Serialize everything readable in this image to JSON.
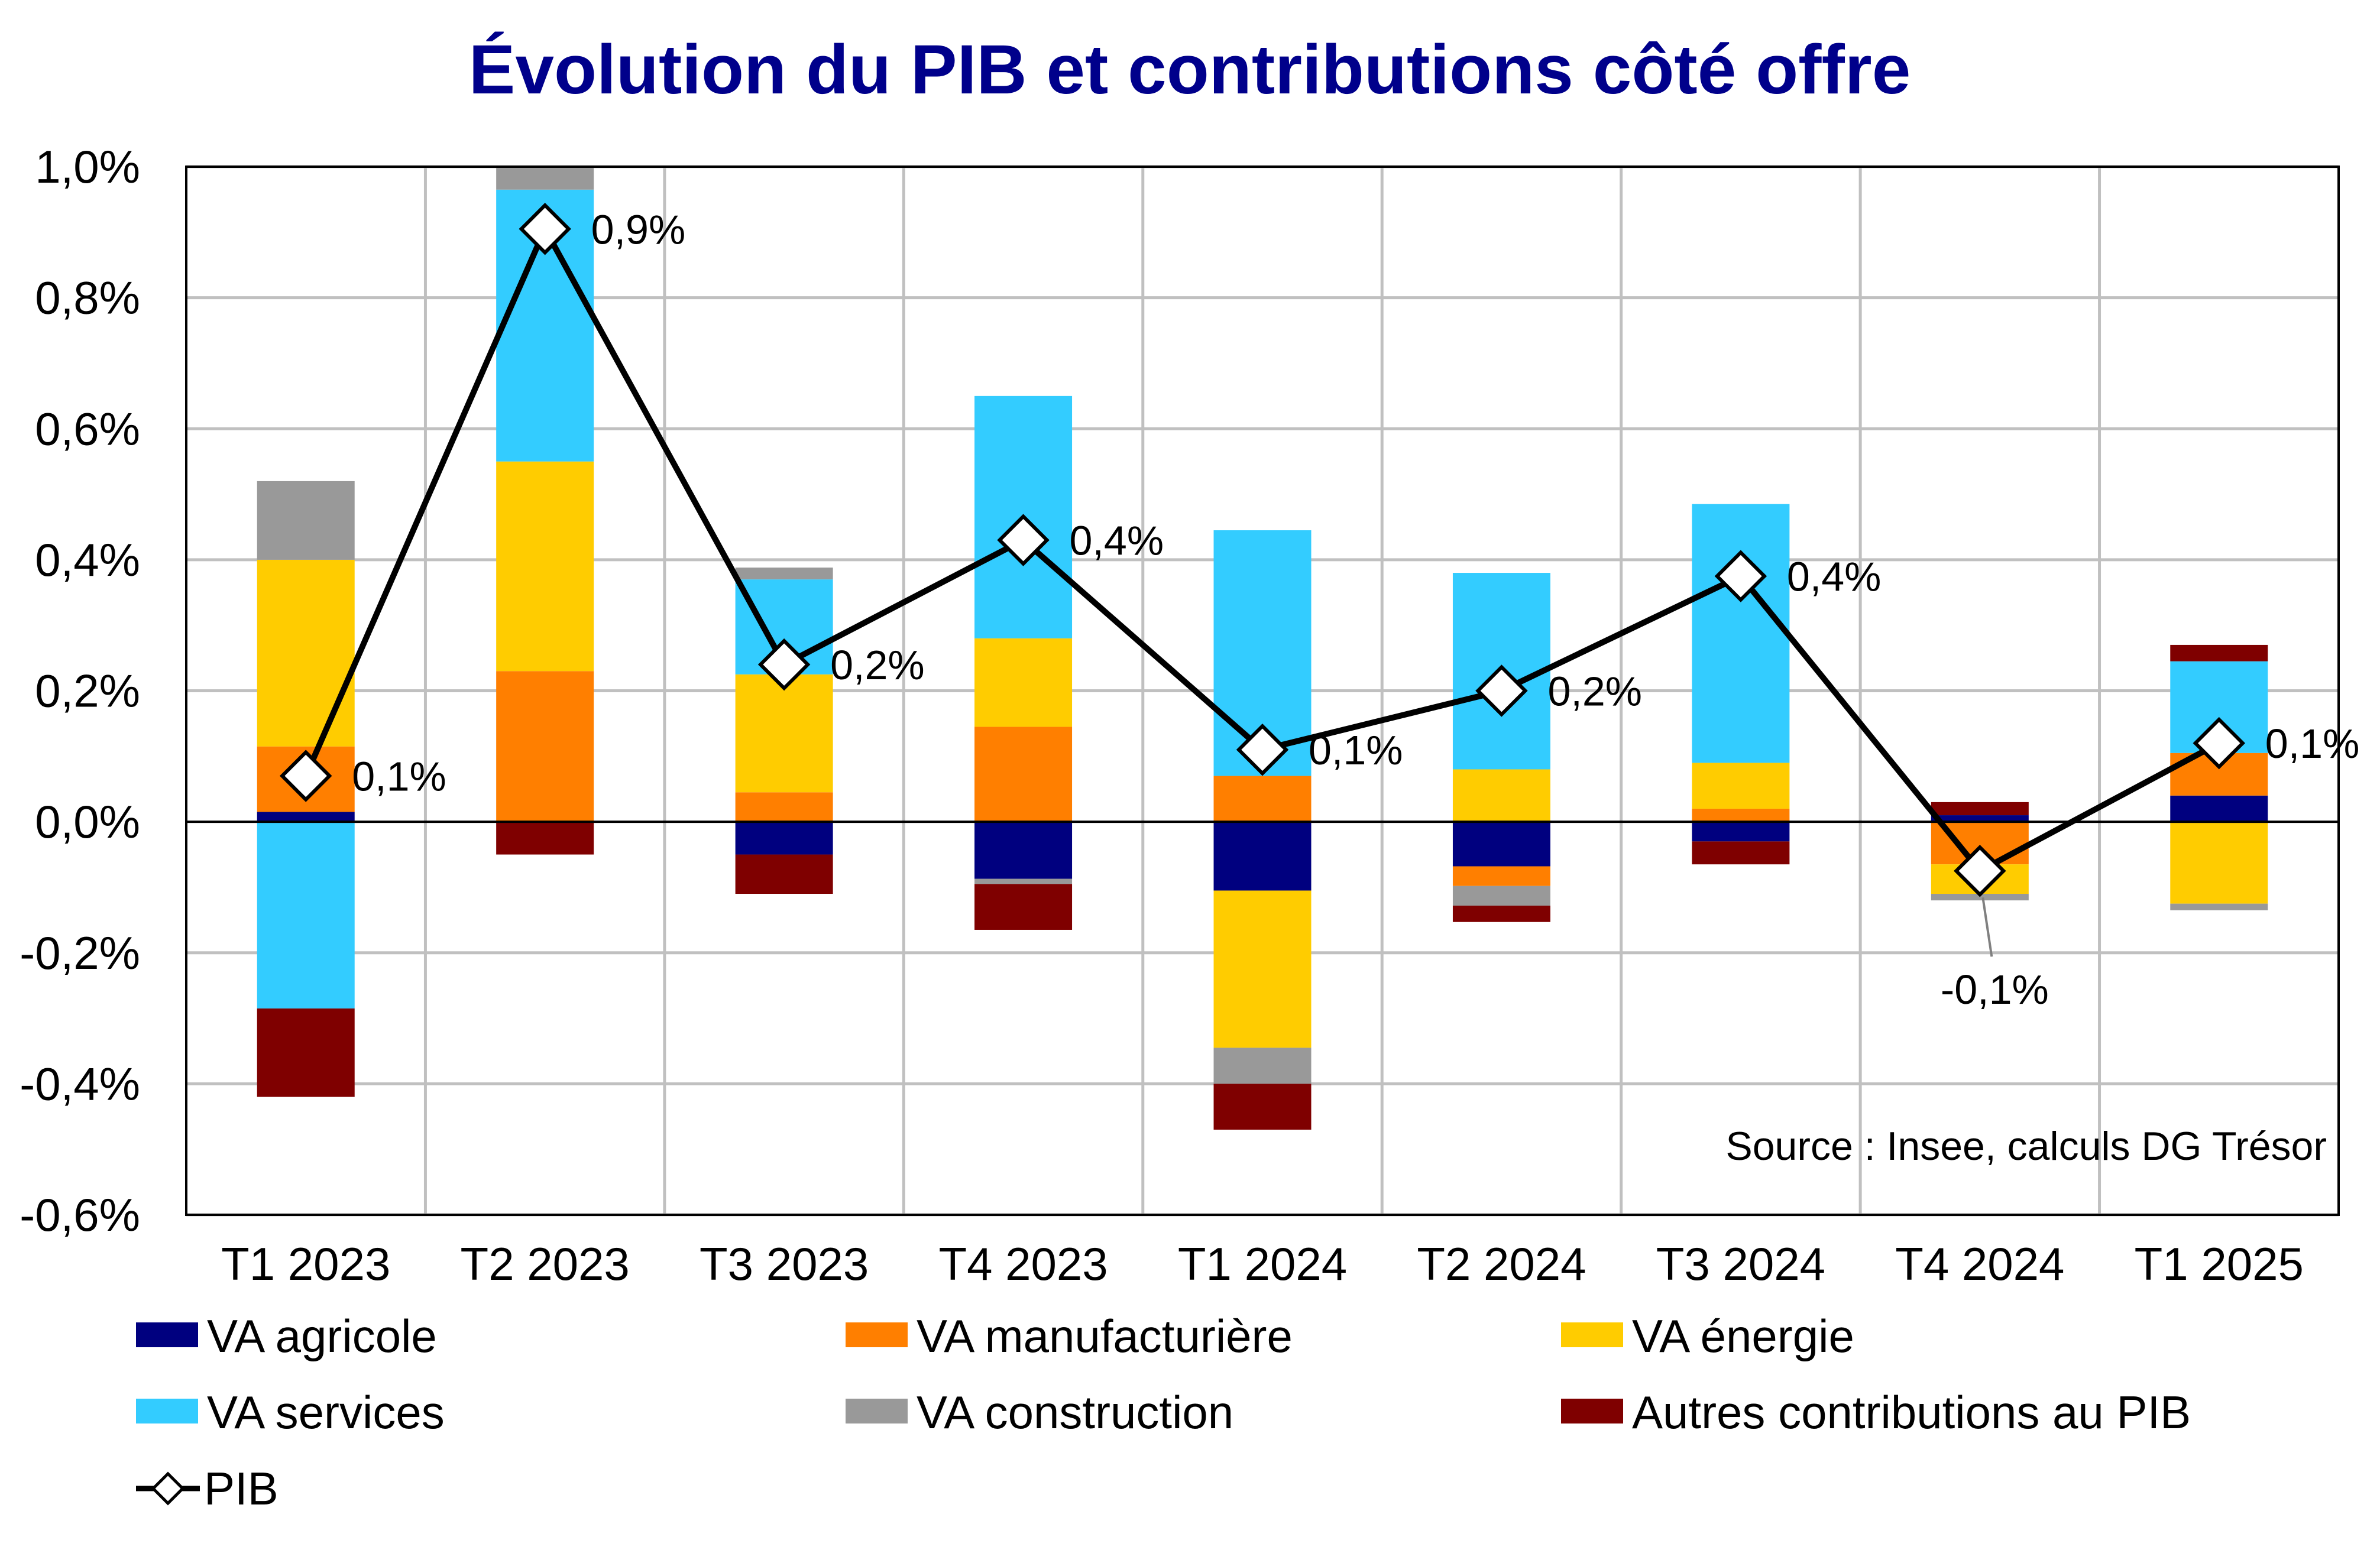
{
  "chart_data": {
    "type": "bar",
    "stacked": true,
    "title": "Évolution du PIB et contributions côté offre",
    "source": "Source : Insee, calculs DG Trésor",
    "categories": [
      "T1 2023",
      "T2 2023",
      "T3 2023",
      "T4 2023",
      "T1 2024",
      "T2 2024",
      "T3 2024",
      "T4 2024",
      "T1 2025"
    ],
    "ylim": [
      -0.6,
      1.0
    ],
    "yticks": [
      1.0,
      0.8,
      0.6,
      0.4,
      0.2,
      0.0,
      -0.2,
      -0.4,
      -0.6
    ],
    "ytick_labels": [
      "1,0%",
      "0,8%",
      "0,6%",
      "0,4%",
      "0,2%",
      "0,0%",
      "-0,2%",
      "-0,4%",
      "-0,6%"
    ],
    "grid": true,
    "legend_position": "bottom",
    "series": [
      {
        "name": "VA agricole",
        "color": "#00007F",
        "values": [
          0.015,
          0.0,
          -0.05,
          -0.087,
          -0.105,
          -0.068,
          -0.03,
          0.01,
          0.04
        ]
      },
      {
        "name": "VA manufacturière",
        "color": "#FF7F00",
        "values": [
          0.1,
          0.23,
          0.045,
          0.145,
          0.07,
          -0.03,
          0.02,
          -0.065,
          0.065
        ]
      },
      {
        "name": "VA énergie",
        "color": "#FFCC00",
        "values": [
          0.285,
          0.32,
          0.18,
          0.135,
          -0.24,
          0.08,
          0.07,
          -0.045,
          -0.125
        ]
      },
      {
        "name": "VA services",
        "color": "#33CCFF",
        "values": [
          -0.285,
          0.415,
          0.145,
          0.37,
          0.375,
          0.3,
          0.395,
          0.0,
          0.14
        ]
      },
      {
        "name": "VA construction",
        "color": "#999999",
        "values": [
          0.12,
          0.035,
          0.018,
          -0.008,
          -0.055,
          -0.03,
          0.0,
          -0.01,
          -0.01
        ]
      },
      {
        "name": "Autres contributions au PIB",
        "color": "#7F0000",
        "values": [
          -0.135,
          -0.05,
          -0.06,
          -0.07,
          -0.07,
          -0.025,
          -0.035,
          0.02,
          0.025
        ]
      }
    ],
    "line": {
      "name": "PIB",
      "values": [
        0.07,
        0.905,
        0.24,
        0.43,
        0.11,
        0.2,
        0.375,
        -0.075,
        0.12
      ]
    },
    "data_labels": [
      "0,1%",
      "0,9%",
      "0,2%",
      "0,4%",
      "0,1%",
      "0,2%",
      "0,4%",
      "-0,1%",
      "0,1%"
    ]
  }
}
